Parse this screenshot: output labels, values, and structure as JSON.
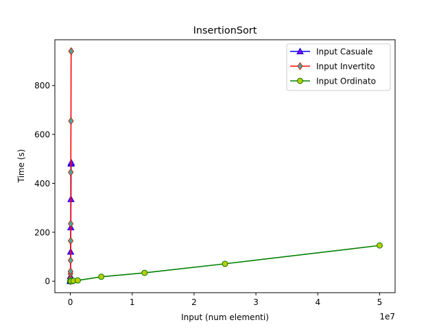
{
  "chart_data": {
    "type": "line",
    "title": "InsertionSort",
    "xlabel": "Input (num elementi)",
    "ylabel": "Time (s)",
    "x_offset_label": "1e7",
    "xlim": [
      -2500000,
      52500000
    ],
    "ylim": [
      -47,
      987
    ],
    "x_ticks": [
      0,
      10000000,
      20000000,
      30000000,
      40000000,
      50000000
    ],
    "x_tick_labels": [
      "0",
      "1",
      "2",
      "3",
      "4",
      "5"
    ],
    "y_ticks": [
      0,
      200,
      400,
      600,
      800
    ],
    "y_tick_labels": [
      "0",
      "200",
      "400",
      "600",
      "800"
    ],
    "grid": false,
    "legend_position": "top-right",
    "series": [
      {
        "name": "Input Casuale",
        "line_color": "#0000ff",
        "marker": "triangle",
        "marker_fill": "#8800ff",
        "marker_edge": "#0000cc",
        "x": [
          1000,
          5000,
          10000,
          20000,
          50000,
          75000,
          100000,
          125000,
          150000
        ],
        "y": [
          0,
          1,
          5,
          20,
          120,
          220,
          335,
          480,
          485
        ]
      },
      {
        "name": "Input Invertito",
        "line_color": "#ff0000",
        "marker": "diamond",
        "marker_fill": "#44aaaa",
        "marker_edge": "#cc2200",
        "x": [
          1000,
          5000,
          10000,
          20000,
          30000,
          40000,
          50000,
          60000,
          75000,
          100000,
          125000,
          150000
        ],
        "y": [
          0,
          2,
          10,
          30,
          40,
          85,
          165,
          235,
          445,
          655,
          940,
          940
        ]
      },
      {
        "name": "Input Ordinato",
        "line_color": "#008000",
        "marker": "circle",
        "marker_fill": "#bbcc00",
        "marker_edge": "#007700",
        "x": [
          1000,
          10000,
          100000,
          500000,
          1200000,
          5000000,
          12000000,
          25000000,
          50000000
        ],
        "y": [
          0,
          0.1,
          0.3,
          1.5,
          3,
          18,
          34,
          71,
          146
        ]
      }
    ]
  }
}
